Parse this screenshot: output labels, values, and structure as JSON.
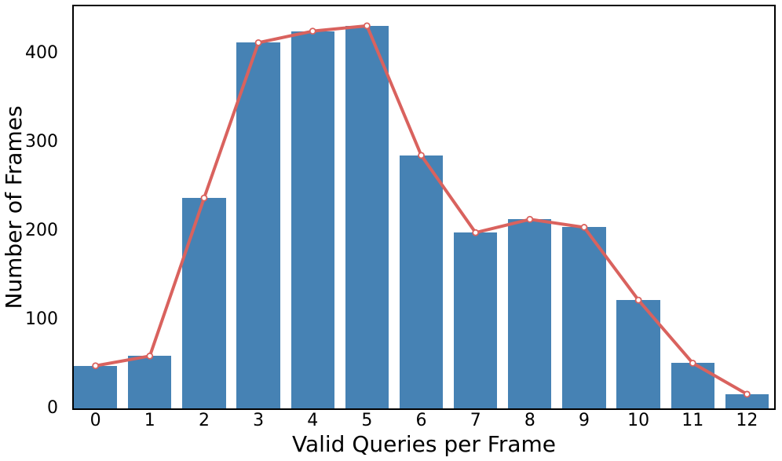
{
  "figure": {
    "background": "#ffffff",
    "spine_color": "#000000"
  },
  "chart_data": {
    "type": "bar",
    "categories": [
      "0",
      "1",
      "2",
      "3",
      "4",
      "5",
      "6",
      "7",
      "8",
      "9",
      "10",
      "11",
      "12"
    ],
    "series": [
      {
        "name": "frames-histogram",
        "type": "bar",
        "color": "#4682b4",
        "values": [
          48,
          59,
          237,
          412,
          425,
          431,
          285,
          198,
          213,
          204,
          122,
          51,
          16
        ]
      },
      {
        "name": "frames-trend-line",
        "type": "line",
        "color": "#d9625e",
        "marker": "circle",
        "marker_fill": "#ffffff",
        "values": [
          48,
          59,
          237,
          412,
          425,
          431,
          285,
          198,
          213,
          204,
          122,
          51,
          16
        ]
      }
    ],
    "title": "",
    "xlabel": "Valid Queries per Frame",
    "ylabel": "Number of Frames",
    "xlim": [
      -0.4,
      12.5
    ],
    "ylim": [
      0,
      453
    ],
    "yticks": [
      "0",
      "100",
      "200",
      "300",
      "400"
    ],
    "bar_width": 0.8,
    "grid": false,
    "legend": null
  }
}
